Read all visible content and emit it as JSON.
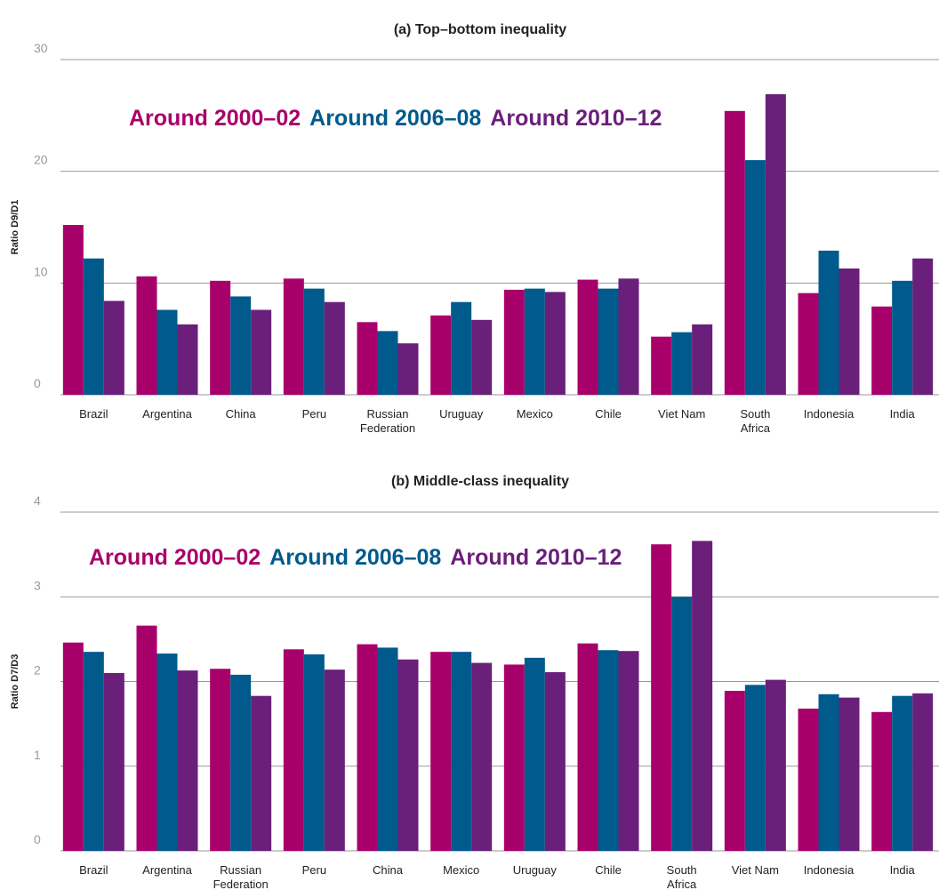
{
  "chart_data": [
    {
      "type": "bar",
      "title": "(a) Top–bottom inequality",
      "y_label": "Ratio D9/D1",
      "categories": [
        "Brazil",
        "Argentina",
        "China",
        "Peru",
        "Russian\nFederation",
        "Uruguay",
        "Mexico",
        "Chile",
        "Viet Nam",
        "South\nAfrica",
        "Indonesia",
        "India"
      ],
      "series": [
        {
          "name": "Around 2000–02",
          "color": "#a8006a",
          "values": [
            15.2,
            10.6,
            10.2,
            10.4,
            6.5,
            7.1,
            9.4,
            10.3,
            5.2,
            25.4,
            9.1,
            7.9
          ]
        },
        {
          "name": "Around 2006–08",
          "color": "#005a8c",
          "values": [
            12.2,
            7.6,
            8.8,
            9.5,
            5.7,
            8.3,
            9.5,
            9.5,
            5.6,
            21.0,
            12.9,
            10.2
          ]
        },
        {
          "name": "Around 2010–12",
          "color": "#6a1f7a",
          "values": [
            8.4,
            6.3,
            7.6,
            8.3,
            4.6,
            6.7,
            9.2,
            10.4,
            6.3,
            26.9,
            11.3,
            12.2
          ]
        }
      ],
      "ylim": [
        0,
        30
      ],
      "yticks": [
        0,
        10,
        20,
        30
      ],
      "grid": true
    },
    {
      "type": "bar",
      "title": "(b) Middle-class inequality",
      "y_label": "Ratio D7/D3",
      "categories": [
        "Brazil",
        "Argentina",
        "Russian\nFederation",
        "Peru",
        "China",
        "Mexico",
        "Uruguay",
        "Chile",
        "South\nAfrica",
        "Viet Nam",
        "Indonesia",
        "India"
      ],
      "series": [
        {
          "name": "Around 2000–02",
          "color": "#a8006a",
          "values": [
            2.46,
            2.66,
            2.15,
            2.38,
            2.44,
            2.35,
            2.2,
            2.45,
            3.62,
            1.89,
            1.68,
            1.64
          ]
        },
        {
          "name": "Around 2006–08",
          "color": "#005a8c",
          "values": [
            2.35,
            2.33,
            2.08,
            2.32,
            2.4,
            2.35,
            2.28,
            2.37,
            3.0,
            1.96,
            1.85,
            1.83
          ]
        },
        {
          "name": "Around 2010–12",
          "color": "#6a1f7a",
          "values": [
            2.1,
            2.13,
            1.83,
            2.14,
            2.26,
            2.22,
            2.11,
            2.36,
            3.66,
            2.02,
            1.81,
            1.86
          ]
        }
      ],
      "ylim": [
        0,
        4
      ],
      "yticks": [
        0,
        1,
        2,
        3,
        4
      ],
      "grid": true
    }
  ]
}
